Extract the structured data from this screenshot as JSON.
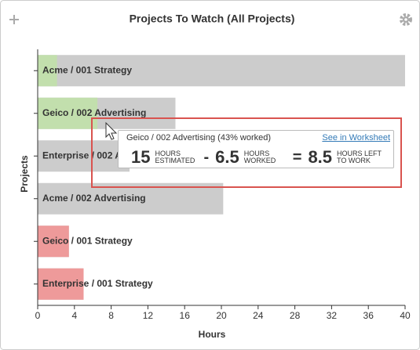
{
  "header": {
    "title": "Projects To Watch (All Projects)"
  },
  "chart_data": {
    "type": "bar",
    "orientation": "horizontal",
    "categories": [
      "Acme / 001 Strategy",
      "Geico / 002 Advertising",
      "Enterprise / 002 Advertising",
      "Acme / 002 Advertising",
      "Geico / 001 Strategy",
      "Enterprise / 001 Strategy"
    ],
    "series": [
      {
        "color": "#cccccc",
        "values": [
          40,
          15,
          10,
          20.2,
          3.4,
          5
        ]
      },
      {
        "colors": [
          "#c2dfad",
          "#c2dfad",
          "#c2dfad",
          "#c2dfad",
          "#ee9a9a",
          "#ee9a9a"
        ],
        "values": [
          2.1,
          6.5,
          0,
          0,
          3.4,
          5
        ]
      }
    ],
    "xlim": [
      0,
      40
    ],
    "xticks": [
      0,
      4,
      8,
      12,
      16,
      20,
      24,
      28,
      32,
      36,
      40
    ],
    "xlabel": "Hours",
    "ylabel": "Projects"
  },
  "tooltip": {
    "title": "Geico / 002 Advertising (43% worked)",
    "link": "See in Worksheet",
    "estimated": "15",
    "estimated_label": "HOURS ESTIMATED",
    "minus": "-",
    "worked": "6.5",
    "worked_label": "HOURS WORKED",
    "equals": "=",
    "left": "8.5",
    "left_label": "HOURS LEFT TO WORK"
  }
}
